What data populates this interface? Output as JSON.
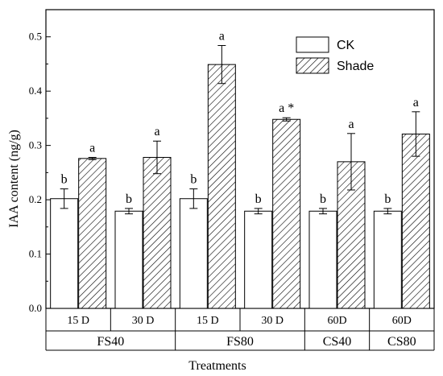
{
  "chart_data": {
    "type": "bar",
    "xlabel": "Treatments",
    "ylabel": "IAA content (ng/g)",
    "ylim": [
      0,
      0.55
    ],
    "yticks": [
      "0.0",
      "0.1",
      "0.2",
      "0.3",
      "0.4",
      "0.5"
    ],
    "legend_position": "top-right",
    "colors": {
      "CK": "#ffffff",
      "Shade": "hatched"
    },
    "categories": [
      {
        "label": "15 D",
        "group": "FS40"
      },
      {
        "label": "30 D",
        "group": "FS40"
      },
      {
        "label": "15 D",
        "group": "FS80"
      },
      {
        "label": "30 D",
        "group": "FS80"
      },
      {
        "label": "60D",
        "group": "CS40"
      },
      {
        "label": "60D",
        "group": "CS80"
      }
    ],
    "groups": [
      "FS40",
      "FS80",
      "CS40",
      "CS80"
    ],
    "series": [
      {
        "name": "CK",
        "values": [
          0.202,
          0.179,
          0.202,
          0.179,
          0.179,
          0.179
        ],
        "errors": [
          0.018,
          0.005,
          0.018,
          0.005,
          0.005,
          0.005
        ],
        "labels": [
          "b",
          "b",
          "b",
          "b",
          "b",
          "b"
        ]
      },
      {
        "name": "Shade",
        "values": [
          0.276,
          0.278,
          0.449,
          0.348,
          0.27,
          0.321
        ],
        "errors": [
          0.002,
          0.03,
          0.035,
          0.003,
          0.052,
          0.041
        ],
        "labels": [
          "a",
          "a",
          "a",
          "a *",
          "a",
          "a"
        ]
      }
    ]
  }
}
